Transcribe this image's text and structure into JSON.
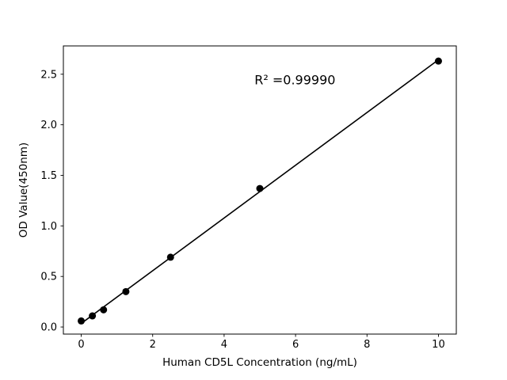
{
  "page": {
    "background": "#ffffff"
  },
  "chart_data": {
    "type": "scatter",
    "title": "",
    "xlabel": "Human CD5L Concentration (ng/mL)",
    "ylabel": "OD Value(450nm)",
    "x": [
      0,
      0.3125,
      0.625,
      1.25,
      2.5,
      5,
      10
    ],
    "y": [
      0.06,
      0.11,
      0.17,
      0.35,
      0.69,
      1.37,
      2.63
    ],
    "xticks": [
      0,
      2,
      4,
      6,
      8,
      10
    ],
    "yticks": [
      0.0,
      0.5,
      1.0,
      1.5,
      2.0,
      2.5
    ],
    "xlim": [
      -0.5,
      10.5
    ],
    "ylim": [
      -0.07,
      2.78
    ],
    "grid": false,
    "fit_line": true,
    "annotation": {
      "text": "R² =0.99990",
      "x": 4.85,
      "y": 2.4
    },
    "marker_color": "#000000",
    "line_color": "#000000",
    "axis_color": "#000000"
  }
}
